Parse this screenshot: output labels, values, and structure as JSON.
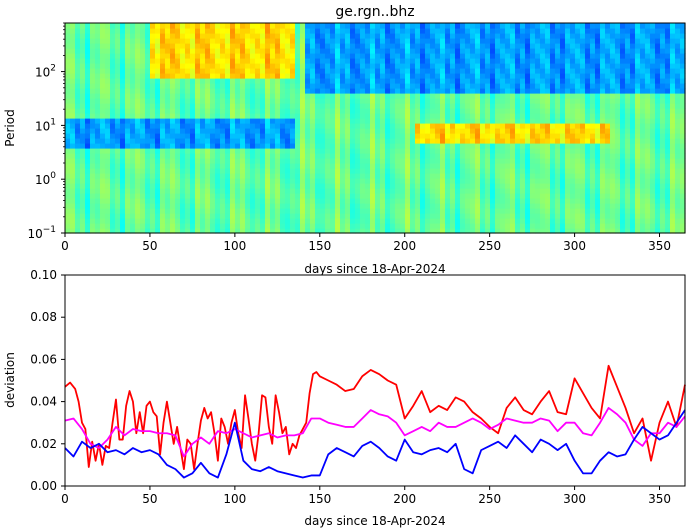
{
  "chart_data": [
    {
      "type": "heatmap",
      "title": "ge.rgn..bhz",
      "xlabel": "days since 18-Apr-2024",
      "ylabel": "Period",
      "xlim": [
        0,
        365
      ],
      "ylim": [
        0.1,
        800
      ],
      "yscale": "log",
      "colormap": "jet",
      "x_ticks": [
        0,
        50,
        100,
        150,
        200,
        250,
        300,
        350
      ],
      "x_tick_labels": [
        "0",
        "50",
        "100",
        "150",
        "200",
        "250",
        "300",
        "350"
      ],
      "y_ticks": [
        0.1,
        1,
        10,
        100
      ],
      "y_tick_labels": [
        "10",
        "10",
        "10",
        "10"
      ],
      "y_tick_exponents": [
        "−1",
        "0",
        "1",
        "2"
      ],
      "features": [
        {
          "x_start": 0,
          "x_end": 135,
          "period_low": 4,
          "period_high": 15,
          "level": "low"
        },
        {
          "x_start": 140,
          "x_end": 365,
          "period_low": 40,
          "period_high": 800,
          "level": "low"
        },
        {
          "x_start": 205,
          "x_end": 320,
          "period_low": 5,
          "period_high": 12,
          "level": "high"
        },
        {
          "x_start": 50,
          "x_end": 135,
          "period_low": 80,
          "period_high": 800,
          "level": "high"
        }
      ]
    },
    {
      "type": "line",
      "xlabel": "days since 18-Apr-2024",
      "ylabel": "deviation",
      "xlim": [
        0,
        365
      ],
      "ylim": [
        0,
        0.1
      ],
      "x_ticks": [
        0,
        50,
        100,
        150,
        200,
        250,
        300,
        350
      ],
      "x_tick_labels": [
        "0",
        "50",
        "100",
        "150",
        "200",
        "250",
        "300",
        "350"
      ],
      "y_ticks": [
        0,
        0.02,
        0.04,
        0.06,
        0.08,
        0.1
      ],
      "y_tick_labels": [
        "0.00",
        "0.02",
        "0.04",
        "0.06",
        "0.08",
        "0.10"
      ],
      "series": [
        {
          "color": "#ff0000",
          "x": [
            0,
            3,
            6,
            8,
            10,
            12,
            14,
            16,
            18,
            20,
            22,
            24,
            26,
            28,
            30,
            32,
            34,
            36,
            38,
            40,
            42,
            44,
            46,
            48,
            50,
            52,
            54,
            56,
            58,
            60,
            62,
            64,
            66,
            68,
            70,
            72,
            74,
            76,
            78,
            80,
            82,
            84,
            86,
            88,
            90,
            92,
            94,
            96,
            98,
            100,
            102,
            104,
            106,
            108,
            110,
            112,
            114,
            116,
            118,
            120,
            122,
            124,
            126,
            128,
            130,
            132,
            134,
            136,
            138,
            140,
            142,
            144,
            146,
            148,
            150,
            155,
            160,
            165,
            170,
            175,
            180,
            185,
            190,
            195,
            200,
            205,
            210,
            215,
            220,
            225,
            230,
            235,
            240,
            245,
            250,
            255,
            260,
            265,
            270,
            275,
            280,
            285,
            290,
            295,
            300,
            305,
            310,
            315,
            320,
            325,
            330,
            335,
            340,
            345,
            350,
            355,
            360,
            365
          ],
          "values": [
            0.047,
            0.049,
            0.046,
            0.04,
            0.03,
            0.027,
            0.009,
            0.021,
            0.012,
            0.02,
            0.01,
            0.019,
            0.018,
            0.03,
            0.041,
            0.022,
            0.022,
            0.038,
            0.045,
            0.04,
            0.025,
            0.035,
            0.025,
            0.038,
            0.04,
            0.035,
            0.033,
            0.015,
            0.03,
            0.04,
            0.03,
            0.02,
            0.028,
            0.018,
            0.008,
            0.022,
            0.02,
            0.008,
            0.02,
            0.031,
            0.037,
            0.032,
            0.035,
            0.025,
            0.012,
            0.032,
            0.028,
            0.02,
            0.03,
            0.036,
            0.025,
            0.018,
            0.043,
            0.032,
            0.02,
            0.012,
            0.025,
            0.043,
            0.042,
            0.028,
            0.02,
            0.043,
            0.035,
            0.025,
            0.028,
            0.015,
            0.02,
            0.018,
            0.024,
            0.027,
            0.03,
            0.044,
            0.053,
            0.054,
            0.052,
            0.05,
            0.048,
            0.045,
            0.046,
            0.052,
            0.055,
            0.053,
            0.05,
            0.048,
            0.032,
            0.038,
            0.045,
            0.035,
            0.038,
            0.036,
            0.042,
            0.04,
            0.035,
            0.032,
            0.028,
            0.025,
            0.037,
            0.042,
            0.036,
            0.034,
            0.04,
            0.045,
            0.035,
            0.034,
            0.051,
            0.044,
            0.037,
            0.032,
            0.057,
            0.047,
            0.037,
            0.025,
            0.032,
            0.012,
            0.03,
            0.04,
            0.028,
            0.048
          ]
        },
        {
          "color": "#ff00ff",
          "x": [
            0,
            5,
            10,
            15,
            20,
            25,
            30,
            35,
            40,
            45,
            50,
            55,
            60,
            65,
            70,
            75,
            80,
            85,
            90,
            95,
            100,
            105,
            110,
            115,
            120,
            125,
            130,
            135,
            140,
            145,
            150,
            155,
            160,
            165,
            170,
            175,
            180,
            185,
            190,
            195,
            200,
            205,
            210,
            215,
            220,
            225,
            230,
            235,
            240,
            245,
            250,
            255,
            260,
            265,
            270,
            275,
            280,
            285,
            290,
            295,
            300,
            305,
            310,
            315,
            320,
            325,
            330,
            335,
            340,
            345,
            350,
            355,
            360,
            365
          ],
          "values": [
            0.031,
            0.032,
            0.027,
            0.02,
            0.018,
            0.022,
            0.028,
            0.024,
            0.027,
            0.026,
            0.026,
            0.025,
            0.025,
            0.024,
            0.014,
            0.02,
            0.023,
            0.02,
            0.026,
            0.025,
            0.027,
            0.025,
            0.023,
            0.024,
            0.025,
            0.023,
            0.024,
            0.024,
            0.025,
            0.032,
            0.032,
            0.03,
            0.029,
            0.028,
            0.028,
            0.032,
            0.036,
            0.034,
            0.033,
            0.03,
            0.024,
            0.026,
            0.028,
            0.026,
            0.03,
            0.028,
            0.028,
            0.03,
            0.032,
            0.03,
            0.027,
            0.029,
            0.032,
            0.031,
            0.03,
            0.03,
            0.032,
            0.031,
            0.026,
            0.03,
            0.03,
            0.025,
            0.024,
            0.03,
            0.037,
            0.034,
            0.03,
            0.022,
            0.019,
            0.025,
            0.025,
            0.03,
            0.028,
            0.033
          ]
        },
        {
          "color": "#0000ff",
          "x": [
            0,
            5,
            10,
            15,
            20,
            25,
            30,
            35,
            40,
            45,
            50,
            55,
            60,
            65,
            70,
            75,
            80,
            85,
            90,
            95,
            100,
            105,
            110,
            115,
            120,
            125,
            130,
            135,
            140,
            145,
            150,
            155,
            160,
            165,
            170,
            175,
            180,
            185,
            190,
            195,
            200,
            205,
            210,
            215,
            220,
            225,
            230,
            235,
            240,
            245,
            250,
            255,
            260,
            265,
            270,
            275,
            280,
            285,
            290,
            295,
            300,
            305,
            310,
            315,
            320,
            325,
            330,
            335,
            340,
            345,
            350,
            355,
            360,
            365
          ],
          "values": [
            0.018,
            0.014,
            0.021,
            0.018,
            0.02,
            0.016,
            0.017,
            0.015,
            0.018,
            0.016,
            0.017,
            0.015,
            0.01,
            0.008,
            0.004,
            0.006,
            0.011,
            0.006,
            0.004,
            0.015,
            0.03,
            0.012,
            0.008,
            0.007,
            0.009,
            0.007,
            0.006,
            0.005,
            0.004,
            0.005,
            0.005,
            0.015,
            0.018,
            0.016,
            0.014,
            0.019,
            0.021,
            0.018,
            0.014,
            0.012,
            0.022,
            0.016,
            0.015,
            0.017,
            0.018,
            0.016,
            0.02,
            0.008,
            0.006,
            0.017,
            0.019,
            0.021,
            0.018,
            0.024,
            0.02,
            0.016,
            0.022,
            0.02,
            0.017,
            0.02,
            0.012,
            0.006,
            0.006,
            0.012,
            0.016,
            0.014,
            0.015,
            0.022,
            0.028,
            0.025,
            0.022,
            0.024,
            0.03,
            0.036
          ]
        }
      ]
    }
  ]
}
